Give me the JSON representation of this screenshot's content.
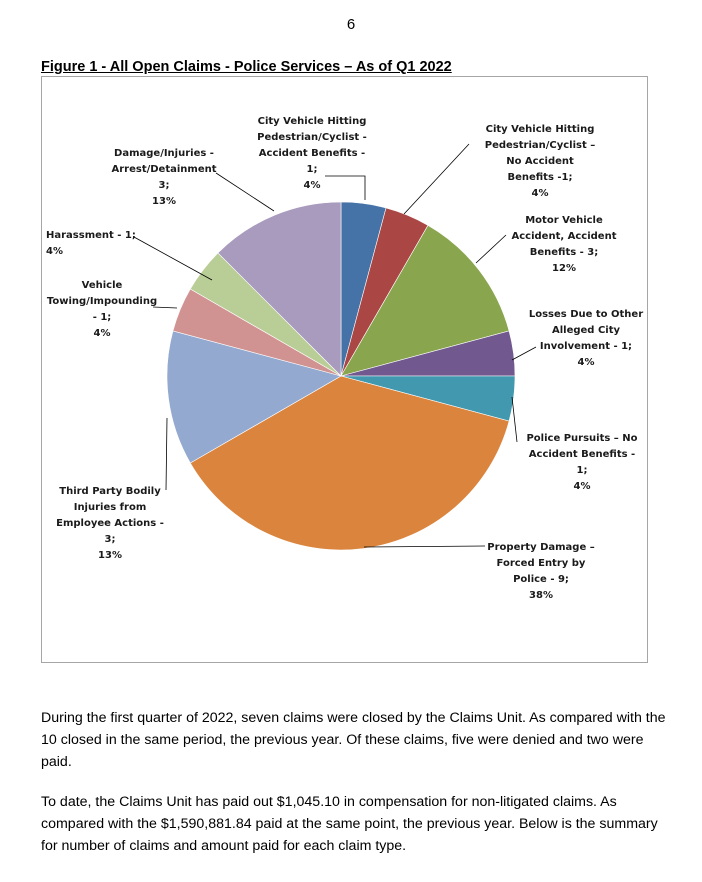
{
  "page": {
    "number": "6"
  },
  "figure": {
    "title": "Figure 1 - All Open Claims - Police Services – As of Q1 2022"
  },
  "chart_data": {
    "type": "pie",
    "title": "Figure 1 - All Open Claims - Police Services – As of Q1 2022",
    "unit": "open claims",
    "start": "12 o'clock, clockwise",
    "slices": [
      {
        "name": "City Vehicle Hitting Pedestrian/Cyclist - Accident Benefits",
        "value": 1,
        "percent": "4%",
        "color": "#4572a7",
        "label_lines": [
          "City Vehicle Hitting",
          "Pedestrian/Cyclist -",
          "Accident Benefits -",
          "1;",
          "4%"
        ]
      },
      {
        "name": "City Vehicle Hitting Pedestrian/Cyclist – No Accident Benefits",
        "value": 1,
        "percent": "4%",
        "color": "#aa4643",
        "label_lines": [
          "City Vehicle Hitting",
          "Pedestrian/Cyclist –",
          "No Accident",
          "Benefits -1;",
          "4%"
        ]
      },
      {
        "name": "Motor Vehicle Accident, Accident Benefits",
        "value": 3,
        "percent": "12%",
        "color": "#89a54e",
        "label_lines": [
          "Motor Vehicle",
          "Accident, Accident",
          "Benefits - 3;",
          "12%"
        ]
      },
      {
        "name": "Losses Due to Other Alleged City Involvement",
        "value": 1,
        "percent": "4%",
        "color": "#71588f",
        "label_lines": [
          "Losses Due to Other",
          "Alleged City",
          "Involvement - 1;",
          "4%"
        ]
      },
      {
        "name": "Police Pursuits – No Accident Benefits",
        "value": 1,
        "percent": "4%",
        "color": "#4198af",
        "label_lines": [
          "Police Pursuits – No",
          "Accident Benefits -",
          "1;",
          "4%"
        ]
      },
      {
        "name": "Property Damage – Forced Entry by Police",
        "value": 9,
        "percent": "38%",
        "color": "#db843d",
        "label_lines": [
          "Property Damage –",
          "Forced Entry by",
          "Police - 9;",
          "38%"
        ]
      },
      {
        "name": "Third Party Bodily Injuries from Employee Actions",
        "value": 3,
        "percent": "13%",
        "color": "#93a9cf",
        "label_lines": [
          "Third Party Bodily",
          "Injuries from",
          "Employee Actions -",
          "3;",
          "13%"
        ]
      },
      {
        "name": "Vehicle Towing/Impounding",
        "value": 1,
        "percent": "4%",
        "color": "#d19392",
        "label_lines": [
          "Vehicle",
          "Towing/Impounding",
          "- 1;",
          "4%"
        ]
      },
      {
        "name": "Harassment",
        "value": 1,
        "percent": "4%",
        "color": "#b9cd96",
        "label_lines": [
          "Harassment - 1;",
          "4%"
        ]
      },
      {
        "name": "Damage/Injuries - Arrest/Detainment",
        "value": 3,
        "percent": "13%",
        "color": "#a99bbd",
        "label_lines": [
          "Damage/Injuries -",
          "Arrest/Detainment",
          "3;",
          "13%"
        ]
      }
    ]
  },
  "paragraphs": [
    "During the first quarter of 2022, seven claims were closed by the Claims Unit. As compared with the 10 closed in the same period, the previous year. Of these claims, five were denied and two were paid.",
    "To date, the Claims Unit has paid out $1,045.10 in compensation for non-litigated claims. As compared with the $1,590,881.84 paid at the same point, the previous year. Below is the summary for number of claims and amount paid for each claim type."
  ]
}
